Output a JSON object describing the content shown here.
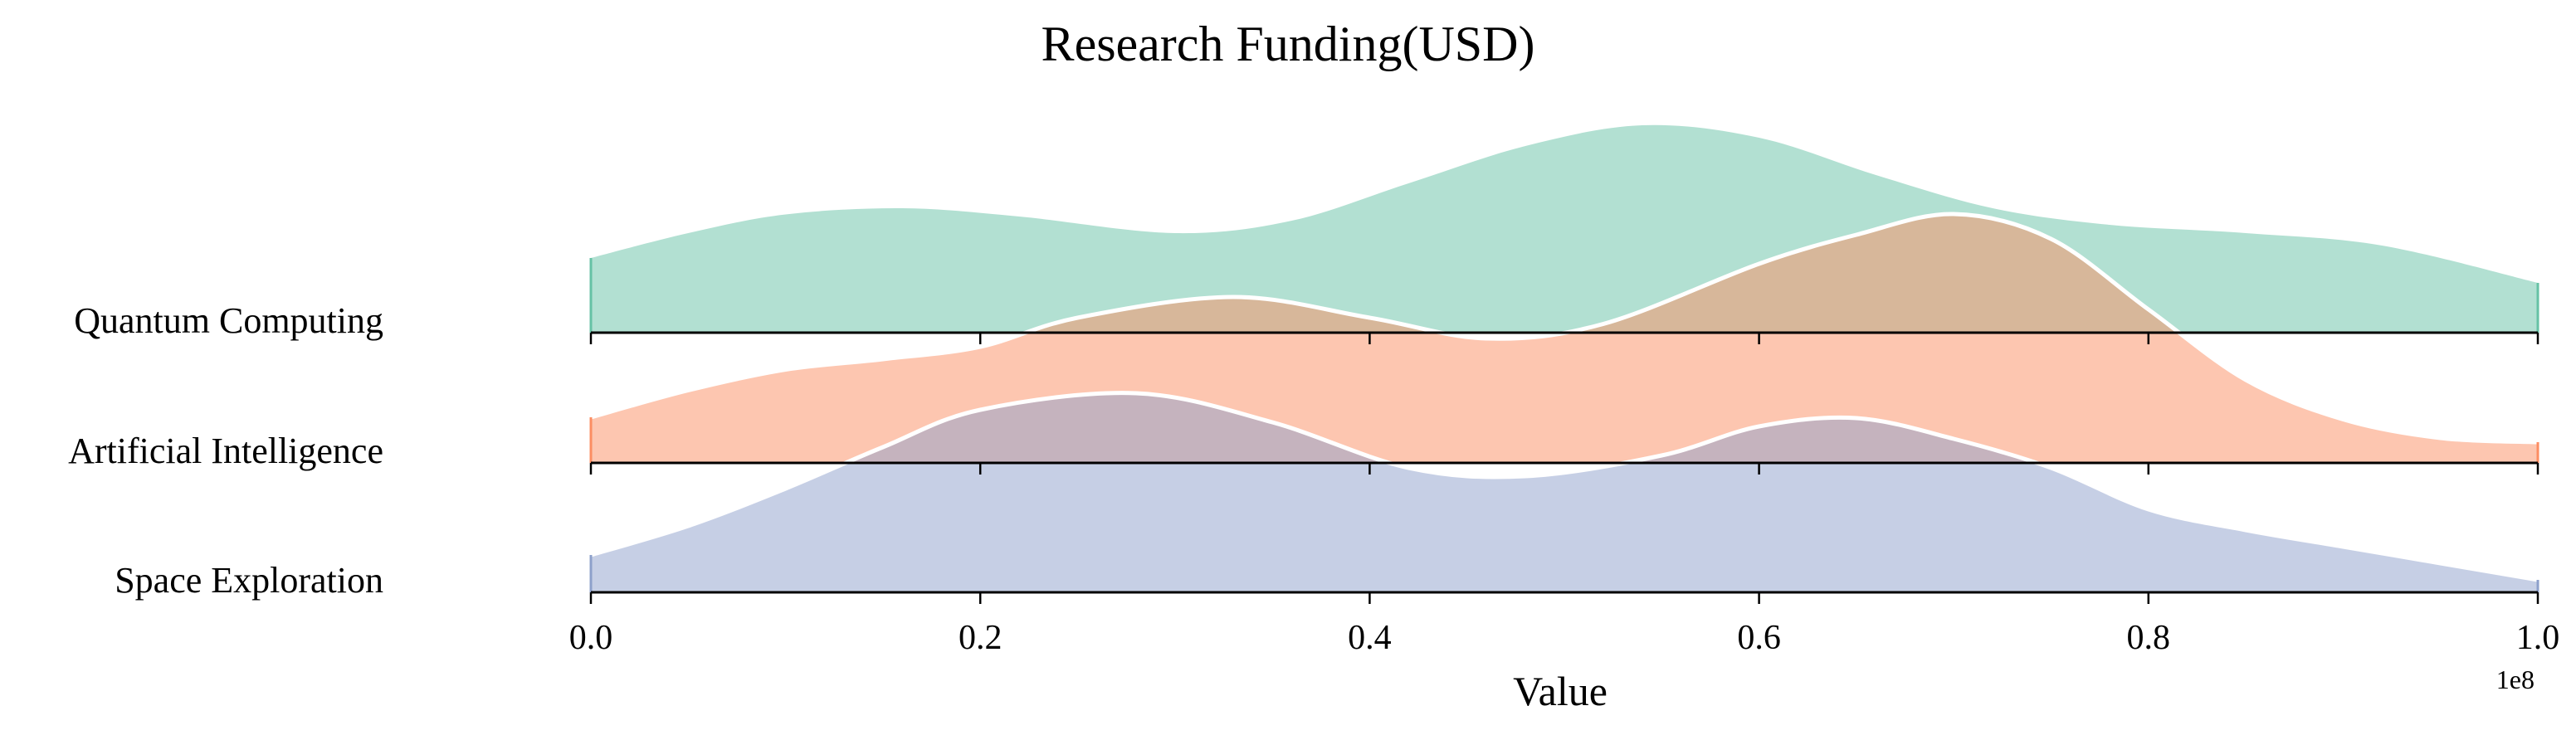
{
  "chart_data": {
    "type": "area",
    "subtype": "ridgeline",
    "title": "Research Funding(USD)",
    "xlabel": "Value",
    "ylabel": "",
    "x_offset_label": "1e8",
    "xlim": [
      0.0,
      1.0
    ],
    "x_ticks": [
      0.0,
      0.2,
      0.4,
      0.6,
      0.8,
      1.0
    ],
    "x_tick_labels": [
      "0.0",
      "0.2",
      "0.4",
      "0.6",
      "0.8",
      "1.0"
    ],
    "grid": false,
    "legend": "none",
    "series": [
      {
        "name": "Quantum Computing",
        "color": "#66c2a5",
        "x": [
          0.0,
          0.05,
          0.1,
          0.16,
          0.22,
          0.3,
          0.36,
          0.42,
          0.48,
          0.54,
          0.6,
          0.66,
          0.72,
          0.78,
          0.85,
          0.92,
          1.0
        ],
        "density": [
          0.36,
          0.48,
          0.57,
          0.6,
          0.56,
          0.48,
          0.54,
          0.72,
          0.9,
          1.0,
          0.94,
          0.76,
          0.6,
          0.52,
          0.48,
          0.42,
          0.24
        ]
      },
      {
        "name": "Artificial Intelligence",
        "color": "#fc8d62",
        "x": [
          0.0,
          0.05,
          0.1,
          0.15,
          0.2,
          0.25,
          0.33,
          0.4,
          0.46,
          0.52,
          0.6,
          0.65,
          0.7,
          0.75,
          0.8,
          0.85,
          0.9,
          0.95,
          1.0
        ],
        "density": [
          0.22,
          0.35,
          0.45,
          0.5,
          0.56,
          0.7,
          0.8,
          0.7,
          0.6,
          0.67,
          0.96,
          1.1,
          1.2,
          1.08,
          0.74,
          0.4,
          0.21,
          0.12,
          0.1
        ]
      },
      {
        "name": "Space Exploration",
        "color": "#8da0cb",
        "x": [
          0.0,
          0.05,
          0.1,
          0.15,
          0.2,
          0.28,
          0.35,
          0.42,
          0.48,
          0.55,
          0.6,
          0.65,
          0.7,
          0.75,
          0.8,
          0.85,
          0.9,
          0.95,
          1.0
        ],
        "density": [
          0.18,
          0.32,
          0.5,
          0.7,
          0.88,
          0.96,
          0.82,
          0.6,
          0.56,
          0.66,
          0.8,
          0.84,
          0.74,
          0.6,
          0.4,
          0.3,
          0.22,
          0.14,
          0.06
        ]
      }
    ]
  }
}
